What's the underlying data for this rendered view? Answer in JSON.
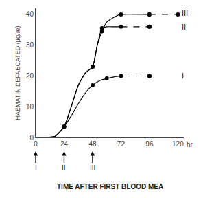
{
  "chart_data": {
    "type": "line",
    "xlabel": "TIME AFTER FIRST BLOOD MEA",
    "ylabel": "HAEMATIN DEFAECATED (µg/æ)",
    "xlim": [
      0,
      125
    ],
    "ylim": [
      0,
      42
    ],
    "xticks": [
      0,
      24,
      48,
      72,
      96,
      120
    ],
    "yticks": [
      0,
      10,
      20,
      30,
      40
    ],
    "grid": false,
    "series": [
      {
        "color": "#000000",
        "line_style": "solid",
        "x": [
          0,
          8,
          16,
          24,
          30,
          36,
          42,
          48,
          54,
          60,
          66,
          72
        ],
        "values": [
          0,
          0,
          0.3,
          3.5,
          7,
          11,
          14.5,
          17,
          18.5,
          19.2,
          19.7,
          20
        ]
      },
      {
        "color": "#000000",
        "line_style": "solid",
        "x": [
          0,
          8,
          16,
          24,
          30,
          36,
          42,
          48,
          52,
          56,
          60,
          66,
          72
        ],
        "values": [
          0,
          0,
          0.3,
          3.5,
          10,
          17,
          21,
          23,
          30,
          35.5,
          36,
          36,
          36
        ]
      },
      {
        "color": "#000000",
        "line_style": "solid",
        "x": [
          0,
          8,
          16,
          24,
          30,
          36,
          42,
          48,
          52,
          56,
          60,
          68,
          72,
          96
        ],
        "values": [
          0,
          0,
          0.3,
          3.5,
          10,
          17,
          21,
          23,
          30,
          34.5,
          37.5,
          39.5,
          40,
          40
        ]
      },
      {
        "color": "#000000",
        "line_style": "dashed",
        "x": [
          72,
          96
        ],
        "values": [
          20,
          20
        ]
      },
      {
        "color": "#000000",
        "line_style": "dashed",
        "x": [
          72,
          96
        ],
        "values": [
          36,
          36
        ]
      },
      {
        "color": "#000000",
        "line_style": "dashed",
        "x": [
          96,
          120
        ],
        "values": [
          40,
          40
        ]
      },
      {
        "type": "scatter",
        "marker": "circle",
        "color": "#000000",
        "x": [
          24,
          48,
          60,
          72,
          96
        ],
        "values": [
          3.5,
          17,
          19.2,
          20,
          20
        ]
      },
      {
        "type": "scatter",
        "marker": "circle",
        "color": "#000000",
        "x": [
          24,
          48,
          56,
          72,
          96
        ],
        "values": [
          3.5,
          23,
          35.5,
          36,
          36
        ]
      },
      {
        "type": "scatter",
        "marker": "circle",
        "color": "#000000",
        "x": [
          24,
          48,
          56,
          72,
          96
        ],
        "values": [
          3.5,
          23,
          34.5,
          40,
          40
        ]
      },
      {
        "type": "scatter",
        "marker": "circle",
        "color": "#000000",
        "x": [
          96,
          96,
          96,
          120
        ],
        "values": [
          20,
          36,
          40,
          40
        ]
      }
    ],
    "annotations": [
      {
        "text": "hr"
      },
      {
        "text": "I",
        "x": 122,
        "y": 20
      },
      {
        "text": "II",
        "x": 122,
        "y": 36
      },
      {
        "text": "III",
        "x": 122,
        "y": 40.5
      }
    ],
    "arrows": [
      {
        "x": 0,
        "label": "I"
      },
      {
        "x": 24,
        "label": "II"
      },
      {
        "x": 48,
        "label": "III"
      }
    ]
  }
}
